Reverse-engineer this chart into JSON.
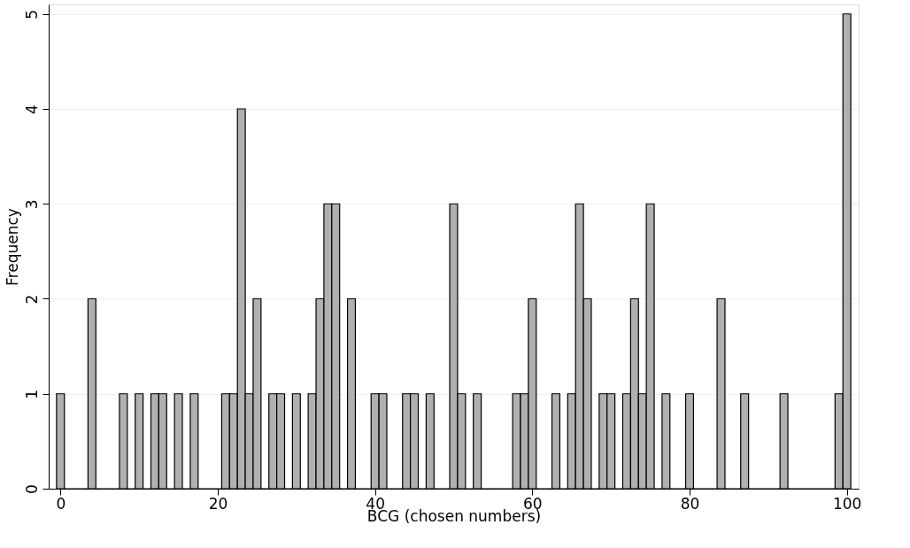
{
  "chart_data": {
    "type": "histogram",
    "xlabel": "BCG (chosen numbers)",
    "ylabel": "Frequency",
    "color": "#b0b0b0",
    "bins": [
      -0.5,
      0.5,
      1.5,
      2.5,
      3.5,
      4.5,
      5.5,
      6.5,
      7.5,
      8.5,
      9.5,
      10.5,
      11.5,
      12.5,
      13.5,
      14.5,
      15.5,
      16.5,
      17.5,
      18.5,
      19.5,
      20.5,
      21.5,
      22.5,
      23.5,
      24.5,
      25.5,
      26.5,
      27.5,
      28.5,
      29.5,
      30.5,
      31.5,
      32.5,
      33.5,
      34.5,
      35.5,
      36.5,
      37.5,
      38.5,
      39.5,
      40.5,
      41.5,
      42.5,
      43.5,
      44.5,
      45.5,
      46.5,
      47.5,
      48.5,
      49.5,
      50.5,
      51.5,
      52.5,
      53.5,
      54.5,
      55.5,
      56.5,
      57.5,
      58.5,
      59.5,
      60.5,
      61.5,
      62.5,
      63.5,
      64.5,
      65.5,
      66.5,
      67.5,
      68.5,
      69.5,
      70.5,
      71.5,
      72.5,
      73.5,
      74.5,
      75.5,
      76.5,
      77.5,
      78.5,
      79.5,
      80.5,
      81.5,
      82.5,
      83.5,
      84.5,
      85.5,
      86.5,
      87.5,
      88.5,
      89.5,
      90.5,
      91.5,
      92.5,
      93.5,
      94.5,
      95.5,
      96.5,
      97.5,
      98.5,
      99.5,
      100.5
    ],
    "values": [
      1,
      0,
      0,
      0,
      2,
      0,
      0,
      0,
      1,
      0,
      1,
      0,
      1,
      1,
      0,
      1,
      0,
      1,
      0,
      0,
      0,
      1,
      1,
      4,
      1,
      2,
      0,
      1,
      1,
      0,
      1,
      0,
      1,
      2,
      3,
      3,
      0,
      2,
      0,
      0,
      1,
      1,
      0,
      0,
      1,
      1,
      0,
      1,
      0,
      0,
      3,
      1,
      0,
      1,
      0,
      0,
      0,
      0,
      1,
      1,
      2,
      0,
      0,
      1,
      0,
      1,
      3,
      2,
      0,
      1,
      1,
      0,
      1,
      2,
      1,
      3,
      0,
      1,
      0,
      0,
      1,
      0,
      0,
      0,
      2,
      0,
      0,
      1,
      0,
      0,
      0,
      0,
      1,
      0,
      0,
      0,
      0,
      0,
      0,
      1,
      5
    ],
    "xlim": [
      -1.5,
      101.5
    ],
    "ylim": [
      0,
      5.1
    ],
    "xticks": [
      0,
      20,
      40,
      60,
      80,
      100
    ],
    "yticks": [
      0,
      1,
      2,
      3,
      4,
      5
    ],
    "grid": "y"
  }
}
